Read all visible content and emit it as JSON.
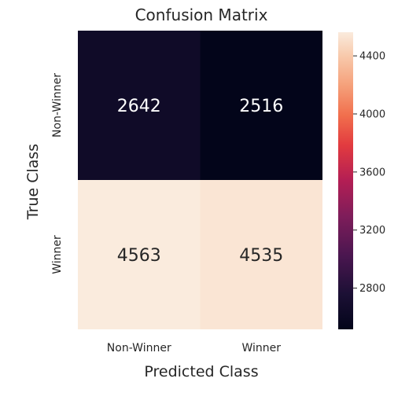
{
  "chart_data": {
    "type": "heatmap",
    "title": "Confusion Matrix",
    "xlabel": "Predicted Class",
    "ylabel": "True Class",
    "x_categories": [
      "Non-Winner",
      "Winner"
    ],
    "y_categories": [
      "Non-Winner",
      "Winner"
    ],
    "values": [
      [
        2642,
        2516
      ],
      [
        4563,
        4535
      ]
    ],
    "colorbar": {
      "min": 2516,
      "max": 4563,
      "ticks": [
        "2800",
        "3200",
        "3600",
        "4000",
        "4400"
      ],
      "colormap": "rocket"
    }
  }
}
